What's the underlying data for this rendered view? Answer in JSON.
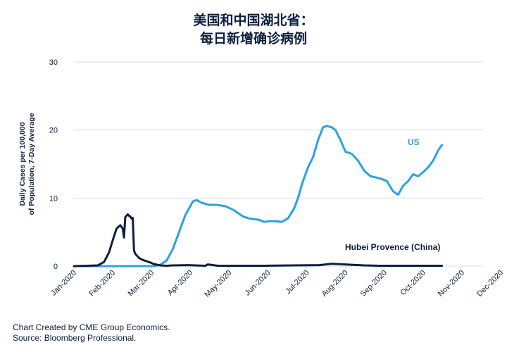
{
  "title_line1": "美国和中国湖北省：",
  "title_line2": "每日新增确诊病例",
  "footer": {
    "credit": "Chart Created by CME Group Economics.",
    "source": "Source: Bloomberg Professional."
  },
  "chart_data": {
    "type": "line",
    "title": "美国和中国湖北省：每日新增确诊病例",
    "ylabel_line1": "Daily Cases per 100,000",
    "ylabel_line2": "of Population, 7-Day Average",
    "ylim": [
      0,
      30
    ],
    "yticks": [
      "0",
      "10",
      "20",
      "30"
    ],
    "grid": true,
    "x_tick_labels": [
      "Jan-2020",
      "Feb-2020",
      "Mar-2020",
      "Apr-2020",
      "May-2020",
      "Jun-2020",
      "Jul-2020",
      "Aug-2020",
      "Sep-2020",
      "Oct-2020",
      "Nov-2020",
      "Dec-2020"
    ],
    "series": [
      {
        "name": "US",
        "color": "#2aa3dd",
        "x": [
          "2020-01-01",
          "2020-03-01",
          "2020-03-05",
          "2020-03-10",
          "2020-03-15",
          "2020-03-20",
          "2020-03-25",
          "2020-03-30",
          "2020-04-05",
          "2020-04-08",
          "2020-04-12",
          "2020-04-18",
          "2020-04-24",
          "2020-05-01",
          "2020-05-07",
          "2020-05-15",
          "2020-05-20",
          "2020-05-28",
          "2020-06-01",
          "2020-06-05",
          "2020-06-10",
          "2020-06-15",
          "2020-06-20",
          "2020-06-25",
          "2020-06-28",
          "2020-07-02",
          "2020-07-06",
          "2020-07-10",
          "2020-07-14",
          "2020-07-18",
          "2020-07-21",
          "2020-07-25",
          "2020-07-28",
          "2020-08-01",
          "2020-08-05",
          "2020-08-10",
          "2020-08-15",
          "2020-08-20",
          "2020-08-25",
          "2020-08-30",
          "2020-09-03",
          "2020-09-07",
          "2020-09-12",
          "2020-09-16",
          "2020-09-20",
          "2020-09-24",
          "2020-09-28",
          "2020-10-02",
          "2020-10-06",
          "2020-10-10",
          "2020-10-14",
          "2020-10-18",
          "2020-10-21"
        ],
        "y": [
          0,
          0,
          0,
          0.2,
          0.8,
          2.5,
          5.0,
          7.5,
          9.5,
          9.7,
          9.3,
          9.0,
          9.0,
          8.8,
          8.3,
          7.3,
          7.0,
          6.8,
          6.5,
          6.6,
          6.6,
          6.5,
          7.0,
          8.5,
          10.0,
          12.5,
          14.5,
          16.0,
          18.5,
          20.4,
          20.6,
          20.4,
          20.0,
          18.5,
          16.8,
          16.5,
          15.5,
          14.0,
          13.2,
          13.0,
          12.8,
          12.5,
          11.0,
          10.5,
          11.8,
          12.5,
          13.5,
          13.2,
          13.8,
          14.5,
          15.5,
          17.0,
          17.8
        ]
      },
      {
        "name": "Hubei Provence (China)",
        "color": "#0d1f3c",
        "x": [
          "2020-01-01",
          "2020-01-20",
          "2020-01-25",
          "2020-01-29",
          "2020-02-01",
          "2020-02-04",
          "2020-02-07",
          "2020-02-09",
          "2020-02-10",
          "2020-02-11",
          "2020-02-13",
          "2020-02-14",
          "2020-02-15",
          "2020-02-16",
          "2020-02-17",
          "2020-02-18",
          "2020-02-19",
          "2020-02-22",
          "2020-02-25",
          "2020-03-01",
          "2020-03-05",
          "2020-03-10",
          "2020-03-15",
          "2020-03-20",
          "2020-04-01",
          "2020-04-15",
          "2020-04-17",
          "2020-04-25",
          "2020-05-01",
          "2020-06-01",
          "2020-07-15",
          "2020-07-25",
          "2020-08-10",
          "2020-08-20",
          "2020-09-01",
          "2020-10-21"
        ],
        "y": [
          0,
          0.1,
          0.6,
          2.0,
          3.8,
          5.5,
          6.0,
          5.5,
          4.2,
          7.2,
          7.6,
          7.4,
          7.3,
          7.0,
          7.1,
          2.3,
          1.8,
          1.2,
          0.9,
          0.6,
          0.3,
          0.1,
          0.05,
          0.1,
          0.15,
          0.05,
          0.25,
          0.05,
          0.05,
          0.05,
          0.15,
          0.35,
          0.2,
          0.1,
          0.05,
          0.05
        ]
      }
    ]
  }
}
